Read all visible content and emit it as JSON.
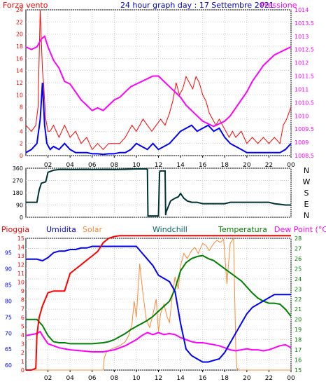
{
  "colors": {
    "wind": "#ff0000",
    "gust_avg": "#0000ff",
    "pressure": "#ff00ff",
    "direction": "#003333",
    "rain": "#ff0000",
    "humidity": "#0000ff",
    "solar": "#ff8833",
    "windchill": "#006666",
    "temperature": "#008000",
    "dewpoint": "#ff00ff",
    "title": "#0000cc",
    "axis_left": "#ff0000",
    "axis_right": "#ff00ff",
    "humidity_axis": "#0000ff",
    "temp_axis": "#008000"
  },
  "chart_data": [
    {
      "type": "line",
      "title": "24 hour graph day : 17 Settembre 2021",
      "left_label": "Forza vento",
      "right_label": "Pressione",
      "x_ticks": [
        "02",
        "04",
        "06",
        "08",
        "10",
        "12",
        "14",
        "16",
        "18",
        "20",
        "22",
        "00"
      ],
      "yleft_ticks": [
        "0",
        "2",
        "4",
        "6",
        "8",
        "10",
        "12",
        "14",
        "16",
        "18",
        "20",
        "22",
        "24"
      ],
      "yleft_lim": [
        0,
        24
      ],
      "yright_ticks": [
        "1008.5",
        "1009",
        "1009.5",
        "1010",
        "1010.5",
        "1011",
        "1011.5",
        "1012",
        "1012.5",
        "1013",
        "1013.5",
        "1014"
      ],
      "yright_lim": [
        1008.5,
        1014
      ],
      "series": [
        {
          "name": "Forza vento",
          "axis": "left",
          "x": [
            0,
            0.5,
            0.9,
            1.1,
            1.3,
            1.5,
            1.6,
            1.7,
            1.8,
            1.9,
            2.0,
            2.2,
            2.5,
            3.0,
            3.5,
            4.0,
            4.5,
            5.0,
            5.5,
            6.0,
            6.5,
            7.0,
            7.5,
            8.0,
            8.5,
            9.0,
            9.3,
            9.6,
            10.0,
            10.3,
            10.6,
            11.0,
            11.4,
            11.8,
            12.2,
            12.6,
            13.0,
            13.3,
            13.6,
            13.9,
            14.2,
            14.5,
            14.8,
            15.1,
            15.4,
            15.7,
            16.0,
            16.3,
            16.6,
            16.9,
            17.2,
            17.5,
            17.8,
            18.1,
            18.4,
            18.7,
            19.0,
            19.5,
            20.0,
            20.5,
            21.0,
            21.5,
            22.0,
            22.5,
            23.0,
            23.3,
            23.6,
            24.0
          ],
          "values": [
            5,
            4,
            5,
            8,
            24,
            14,
            12,
            9,
            6,
            5,
            4,
            4,
            5,
            3,
            5,
            3,
            4,
            2,
            3,
            1,
            2,
            1,
            2,
            2,
            2,
            3,
            4,
            5,
            4,
            5,
            6,
            5,
            4,
            5,
            6,
            5,
            7,
            9,
            12,
            10,
            11,
            13,
            12,
            11,
            13,
            12,
            10,
            9,
            7,
            6,
            5,
            6,
            5,
            4,
            3,
            4,
            3,
            4,
            2,
            3,
            2,
            3,
            2,
            3,
            2,
            5,
            6,
            8
          ]
        },
        {
          "name": "",
          "axis": "left",
          "x": [
            0,
            0.5,
            1.0,
            1.3,
            1.5,
            1.7,
            1.9,
            2.2,
            2.5,
            3.0,
            3.5,
            4.0,
            4.5,
            5.0,
            5.5,
            6.0,
            6.5,
            7.0,
            7.5,
            8.0,
            8.5,
            9.0,
            9.5,
            10.0,
            10.5,
            11.0,
            11.5,
            12.0,
            12.5,
            13.0,
            13.5,
            14.0,
            14.5,
            15.0,
            15.5,
            16.0,
            16.5,
            17.0,
            17.5,
            18.0,
            18.5,
            19.0,
            19.5,
            20.0,
            20.5,
            21.0,
            21.5,
            22.0,
            22.5,
            23.0,
            23.5,
            24.0
          ],
          "values": [
            0.5,
            1,
            2,
            6,
            12,
            5,
            2,
            1,
            1.5,
            1,
            2,
            1,
            0.5,
            0.5,
            0.5,
            0.3,
            0.3,
            0.2,
            0.3,
            0.3,
            0.5,
            0.5,
            1,
            2,
            1.5,
            1,
            2,
            1,
            1.5,
            2,
            3,
            4,
            4.5,
            5,
            4,
            4.5,
            5,
            4,
            4.5,
            3,
            2,
            1.5,
            1,
            0.5,
            0.5,
            0.5,
            0.5,
            0.5,
            0.5,
            0.5,
            1,
            2
          ]
        },
        {
          "name": "Pressione",
          "axis": "right",
          "x": [
            0,
            0.5,
            1.0,
            1.4,
            1.7,
            2.0,
            2.5,
            3.0,
            3.5,
            4.0,
            4.5,
            5.0,
            5.5,
            6.0,
            6.5,
            7.0,
            7.5,
            8.0,
            8.5,
            9.0,
            9.5,
            10.0,
            10.5,
            11.0,
            11.5,
            12.0,
            12.5,
            13.0,
            13.5,
            14.0,
            14.5,
            15.0,
            15.5,
            16.0,
            16.5,
            17.0,
            17.5,
            18.0,
            18.5,
            19.0,
            19.5,
            20.0,
            20.5,
            21.0,
            21.5,
            22.0,
            22.5,
            23.0,
            23.5,
            24.0
          ],
          "values": [
            1012.6,
            1012.5,
            1012.6,
            1012.9,
            1013.0,
            1012.6,
            1012.1,
            1011.8,
            1011.3,
            1011.2,
            1010.9,
            1010.6,
            1010.4,
            1010.2,
            1010.3,
            1010.2,
            1010.4,
            1010.6,
            1010.7,
            1010.9,
            1011.1,
            1011.2,
            1011.3,
            1011.4,
            1011.5,
            1011.5,
            1011.3,
            1011.1,
            1010.9,
            1010.7,
            1010.4,
            1010.2,
            1010.0,
            1009.8,
            1009.7,
            1009.6,
            1009.7,
            1009.8,
            1010.0,
            1010.3,
            1010.6,
            1010.9,
            1011.3,
            1011.6,
            1011.9,
            1012.1,
            1012.3,
            1012.4,
            1012.5,
            1012.6
          ]
        }
      ]
    },
    {
      "type": "line",
      "direction_labels": [
        "N",
        "W",
        "S",
        "E",
        "N"
      ],
      "y_ticks": [
        "0",
        "90",
        "180",
        "270",
        "360"
      ],
      "ylim": [
        0,
        360
      ],
      "series": [
        {
          "name": "",
          "x": [
            0,
            0.3,
            1.0,
            1.2,
            1.4,
            1.8,
            2.0,
            2.5,
            3.0,
            4.0,
            5.0,
            6.0,
            7.0,
            8.0,
            9.0,
            10.0,
            10.9,
            11.0,
            11.05,
            11.5,
            12.0,
            12.1,
            12.15,
            12.6,
            12.65,
            12.7,
            12.9,
            13.1,
            13.3,
            13.5,
            13.8,
            14.0,
            14.3,
            14.6,
            15.0,
            15.5,
            16.0,
            17.0,
            18.0,
            18.5,
            19.0,
            20.0,
            21.0,
            22.0,
            22.5,
            23.0,
            23.5,
            24.0
          ],
          "values": [
            110,
            110,
            110,
            200,
            250,
            260,
            330,
            345,
            350,
            350,
            350,
            350,
            350,
            350,
            352,
            355,
            355,
            350,
            10,
            10,
            10,
            330,
            340,
            340,
            15,
            40,
            80,
            120,
            130,
            140,
            150,
            175,
            140,
            120,
            110,
            110,
            100,
            100,
            100,
            110,
            110,
            110,
            110,
            110,
            100,
            95,
            90,
            90
          ]
        }
      ]
    },
    {
      "type": "line",
      "legend": [
        "Pioggia",
        "Umidita",
        "Solar",
        "Windchill",
        "Temperatura",
        "Dew Point (°C)"
      ],
      "x_ticks": [
        "02",
        "04",
        "06",
        "08",
        "10",
        "12",
        "14",
        "16",
        "18",
        "20",
        "22",
        "00"
      ],
      "rain_ticks": [
        "0",
        "1",
        "2",
        "3",
        "4",
        "5",
        "6",
        "7",
        "8",
        "9",
        "10",
        "11",
        "12",
        "13",
        "14",
        "15"
      ],
      "rain_lim": [
        0,
        15
      ],
      "humidity_ticks": [
        "60",
        "65",
        "70",
        "75",
        "80",
        "85",
        "90",
        "95"
      ],
      "humidity_lim": [
        58.5,
        99.5
      ],
      "temp_ticks": [
        "15",
        "16",
        "17",
        "18",
        "19",
        "20",
        "21",
        "22",
        "23",
        "24",
        "25",
        "26",
        "27",
        "28"
      ],
      "temp_lim": [
        15,
        28
      ],
      "series": [
        {
          "name": "Pioggia",
          "axis": "rain",
          "x": [
            0,
            0.5,
            0.9,
            1.0,
            1.2,
            1.5,
            2.0,
            2.5,
            3.0,
            3.5,
            4.0,
            4.5,
            5.0,
            5.5,
            6.0,
            6.5,
            7.0,
            7.5,
            8.0,
            8.5,
            9.0,
            9.5,
            10.0,
            24.0
          ],
          "values": [
            0,
            0,
            0.2,
            4,
            6,
            7.3,
            8.8,
            9,
            9,
            9,
            11,
            11.5,
            12,
            12.5,
            13,
            13.5,
            14.5,
            15,
            15.2,
            15.3,
            15.3,
            15.3,
            15.3,
            15.3
          ]
        },
        {
          "name": "Umidita",
          "axis": "humidity",
          "x": [
            0,
            0.5,
            1.0,
            1.5,
            2.0,
            2.5,
            3.0,
            3.5,
            4.0,
            4.5,
            5.0,
            5.5,
            6.0,
            7.0,
            8.0,
            9.0,
            10.0,
            10.5,
            11.0,
            11.5,
            12.0,
            12.5,
            13.0,
            13.5,
            14.0,
            14.5,
            15.0,
            15.5,
            16.0,
            16.5,
            17.0,
            17.5,
            18.0,
            18.5,
            19.0,
            19.5,
            20.0,
            20.5,
            21.0,
            21.5,
            22.0,
            22.5,
            23.0,
            23.5,
            24.0
          ],
          "values": [
            93,
            93,
            93,
            92.5,
            93.5,
            95,
            95.5,
            95.5,
            96,
            96,
            96.5,
            96.5,
            97,
            97,
            97,
            97,
            97,
            95,
            93,
            91,
            88,
            87,
            86,
            83,
            73,
            65,
            63,
            62,
            61,
            61,
            61.5,
            62,
            64,
            67,
            70,
            73,
            76,
            78,
            79,
            80,
            81,
            82,
            82,
            82,
            82
          ]
        },
        {
          "name": "Solar",
          "axis": "temp",
          "x": [
            0,
            7.0,
            7.1,
            7.3,
            7.6,
            8.0,
            8.5,
            9.0,
            9.3,
            9.6,
            9.8,
            10.0,
            10.3,
            10.6,
            10.9,
            11.2,
            11.5,
            11.8,
            12.0,
            12.2,
            12.5,
            12.8,
            13.0,
            13.2,
            13.5,
            13.8,
            14.0,
            14.3,
            14.6,
            15.0,
            15.3,
            15.6,
            16.0,
            16.3,
            16.6,
            17.0,
            17.3,
            17.6,
            17.9,
            18.2,
            18.5,
            18.8,
            19.0,
            19.1,
            19.3,
            24.0
          ],
          "values": [
            15,
            15,
            16.2,
            16.8,
            17.0,
            17.2,
            17.4,
            17.8,
            18.4,
            19.5,
            21.8,
            20.2,
            25.5,
            22.5,
            20.0,
            19.2,
            20.5,
            22.0,
            18.8,
            20.6,
            21.5,
            20.2,
            19.7,
            21.8,
            24.2,
            23.0,
            25.3,
            26.5,
            26.0,
            26.8,
            27.1,
            26.5,
            27.5,
            27.3,
            26.8,
            27.5,
            27.8,
            27.6,
            27.9,
            23.5,
            27.5,
            28.0,
            17.2,
            15.2,
            15,
            15
          ]
        },
        {
          "name": "Temperatura",
          "axis": "temp",
          "x": [
            0,
            0.5,
            1.0,
            1.5,
            2.0,
            2.5,
            3.0,
            3.5,
            4.0,
            5.0,
            6.0,
            7.0,
            7.5,
            8.0,
            8.5,
            9.0,
            9.5,
            10.0,
            10.5,
            11.0,
            11.5,
            12.0,
            12.5,
            13.0,
            13.5,
            14.0,
            14.5,
            15.0,
            15.5,
            16.0,
            16.5,
            17.0,
            17.5,
            18.0,
            18.5,
            19.0,
            19.5,
            20.0,
            20.5,
            21.0,
            21.5,
            22.0,
            22.5,
            23.0,
            23.5,
            24.0
          ],
          "values": [
            20.0,
            20.0,
            20.0,
            19.4,
            18.4,
            17.8,
            17.7,
            17.7,
            17.6,
            17.6,
            17.6,
            17.7,
            17.8,
            18.0,
            18.3,
            18.6,
            19.0,
            19.3,
            19.6,
            19.9,
            20.3,
            20.8,
            21.3,
            21.8,
            23.0,
            24.8,
            25.6,
            26.0,
            26.2,
            26.3,
            26.0,
            25.8,
            25.4,
            25.0,
            24.6,
            24.2,
            23.8,
            23.2,
            22.6,
            22.1,
            21.8,
            21.6,
            21.6,
            21.5,
            21.0,
            20.3
          ]
        },
        {
          "name": "Dew Point (°C)",
          "axis": "temp",
          "x": [
            0,
            0.5,
            1.0,
            1.3,
            1.5,
            2.0,
            2.5,
            3.0,
            3.5,
            4.0,
            5.0,
            6.0,
            7.0,
            8.0,
            9.0,
            10.0,
            10.5,
            11.0,
            11.5,
            12.0,
            12.5,
            13.0,
            13.5,
            14.0,
            14.5,
            15.0,
            15.5,
            16.0,
            16.5,
            17.0,
            17.5,
            18.0,
            18.5,
            19.0,
            19.5,
            20.0,
            20.5,
            21.0,
            21.5,
            22.0,
            22.5,
            23.0,
            23.5,
            24.0
          ],
          "values": [
            18.4,
            18.5,
            18.6,
            18.8,
            18.4,
            17.6,
            17.4,
            17.2,
            17.1,
            17.0,
            16.9,
            16.8,
            16.8,
            17.0,
            17.4,
            18.0,
            18.4,
            18.7,
            18.5,
            18.7,
            18.5,
            18.6,
            18.5,
            18.2,
            18.0,
            17.8,
            17.7,
            17.7,
            17.6,
            17.5,
            17.4,
            17.2,
            17.0,
            16.9,
            17.0,
            17.1,
            17.0,
            17.0,
            16.9,
            17.0,
            17.2,
            17.4,
            17.5,
            17.2
          ]
        }
      ]
    }
  ]
}
